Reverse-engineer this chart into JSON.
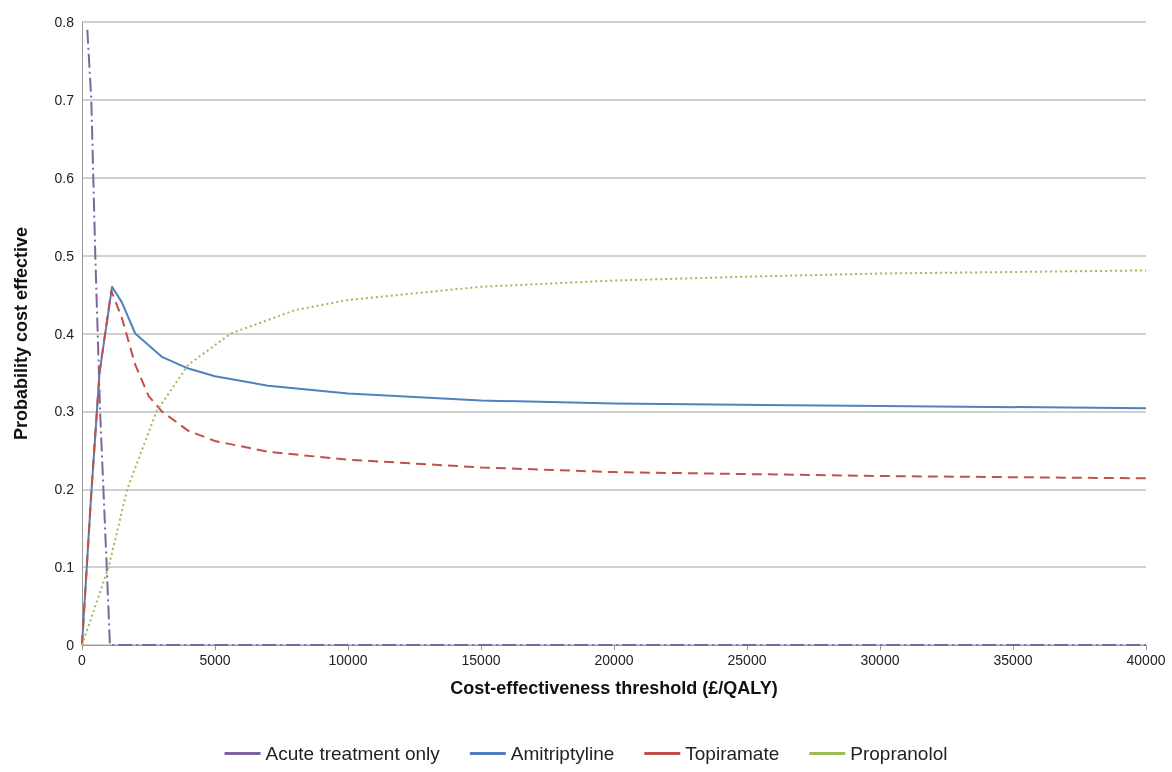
{
  "chart_data": {
    "type": "line",
    "xlabel": "Cost-effectiveness threshold (£/QALY)",
    "ylabel": "Probability cost effective",
    "xlim": [
      0,
      40000
    ],
    "xticks": [
      0,
      5000,
      10000,
      15000,
      20000,
      25000,
      30000,
      35000,
      40000
    ],
    "ylim": [
      0,
      0.8
    ],
    "yticks": [
      0,
      0.1,
      0.2,
      0.3,
      0.4,
      0.5,
      0.6,
      0.7,
      0.8
    ],
    "grid": "y",
    "legend": "bottom",
    "marker": "none",
    "series": [
      {
        "name": "Acute treatment only",
        "color": "#8064a2",
        "line_style": "dashdot",
        "x": [
          200,
          350,
          500,
          680,
          930,
          1050,
          40000
        ],
        "values": [
          0.79,
          0.7,
          0.5,
          0.3,
          0.1,
          0,
          0
        ]
      },
      {
        "name": "Amitriptyline",
        "color": "#4f81bd",
        "line_style": "solid",
        "x": [
          0,
          340,
          660,
          1130,
          1500,
          2000,
          3000,
          4000,
          5000,
          7000,
          10000,
          15000,
          20000,
          30000,
          40000
        ],
        "values": [
          0,
          0.19,
          0.35,
          0.46,
          0.44,
          0.4,
          0.37,
          0.355,
          0.345,
          0.333,
          0.323,
          0.314,
          0.31,
          0.307,
          0.304
        ]
      },
      {
        "name": "Topiramate",
        "color": "#c0504d",
        "line_style": "dashed",
        "x": [
          0,
          340,
          660,
          1100,
          1500,
          2000,
          2500,
          3000,
          4000,
          5000,
          7000,
          10000,
          15000,
          20000,
          30000,
          40000
        ],
        "values": [
          0,
          0.19,
          0.35,
          0.455,
          0.42,
          0.36,
          0.32,
          0.3,
          0.275,
          0.262,
          0.248,
          0.238,
          0.228,
          0.222,
          0.217,
          0.214
        ]
      },
      {
        "name": "Propranolol",
        "color": "#9bbb59",
        "line_style": "dotted",
        "x": [
          0,
          500,
          1000,
          1700,
          2800,
          4000,
          5600,
          8000,
          10000,
          15000,
          20000,
          25000,
          30000,
          40000
        ],
        "values": [
          0,
          0.05,
          0.1,
          0.2,
          0.3,
          0.36,
          0.4,
          0.43,
          0.443,
          0.46,
          0.468,
          0.473,
          0.477,
          0.481
        ]
      }
    ]
  }
}
